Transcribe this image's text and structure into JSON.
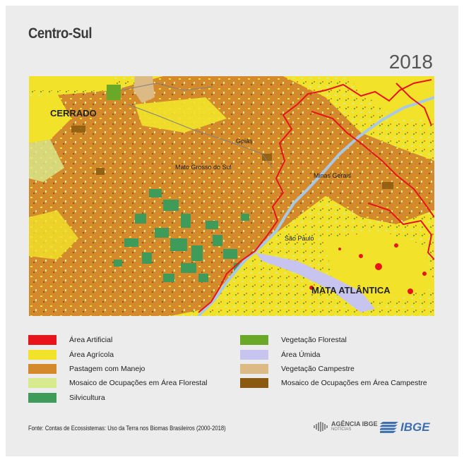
{
  "title": "Centro-Sul",
  "year": "2018",
  "map": {
    "labels": {
      "cerrado": "CERRADO",
      "mata_atlantica": "MATA ATLÂNTICA",
      "goias": "Goiás",
      "mato_grosso_do_sul": "Mato Grosso do Sul",
      "minas_gerais": "Minas Gerais",
      "sao_paulo": "São Paulo"
    }
  },
  "legend": [
    {
      "label": "Área Artificial",
      "color": "#e8141a"
    },
    {
      "label": "Área Agrícola",
      "color": "#f2e32a"
    },
    {
      "label": "Pastagem com Manejo",
      "color": "#d48a2c"
    },
    {
      "label": "Mosaico de Ocupações em Área Florestal",
      "color": "#d8ea8e"
    },
    {
      "label": "Silvicultura",
      "color": "#3e9b5a"
    },
    {
      "label": "Vegetação Florestal",
      "color": "#6aa828"
    },
    {
      "label": "Área Úmida",
      "color": "#c8c4f0"
    },
    {
      "label": "Vegetação Campestre",
      "color": "#dcba86"
    },
    {
      "label": "Mosaico de Ocupações em Área Campestre",
      "color": "#8a5a10"
    }
  ],
  "source": "Fonte: Contas de Ecossistemas: Uso da Terra nos Biomas Brasileiros (2000-2018)",
  "logos": {
    "agencia": "AGÊNCIA IBGE",
    "agencia_sub": "NOTÍCIAS",
    "ibge": "IBGE"
  }
}
